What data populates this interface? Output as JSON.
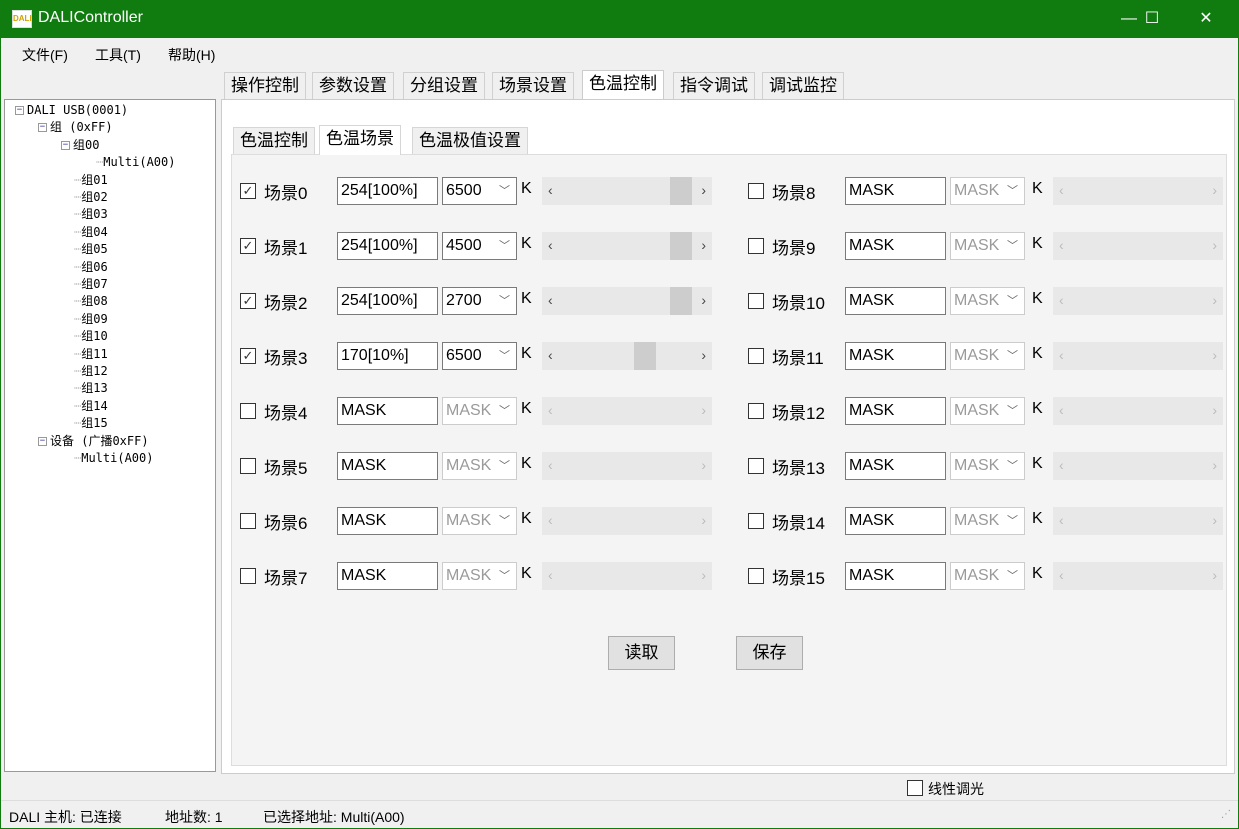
{
  "window": {
    "title": "DALIController",
    "app_icon_text": "DALI",
    "minimize": "—",
    "maximize": "☐",
    "close": "✕"
  },
  "menu": [
    {
      "label": "文件(F)"
    },
    {
      "label": "工具(T)"
    },
    {
      "label": "帮助(H)"
    }
  ],
  "tabs": [
    {
      "label": "操作控制"
    },
    {
      "label": "参数设置"
    },
    {
      "label": "分组设置"
    },
    {
      "label": "场景设置"
    },
    {
      "label": "色温控制",
      "active": true
    },
    {
      "label": "指令调试"
    },
    {
      "label": "调试监控"
    }
  ],
  "inner_tabs": [
    {
      "label": "色温控制"
    },
    {
      "label": "色温场景",
      "active": true
    },
    {
      "label": "色温极值设置"
    }
  ],
  "tree": [
    {
      "label": "DALI USB(0001)",
      "level": 0,
      "toggle": "−"
    },
    {
      "label": "组 (0xFF)",
      "level": 1,
      "toggle": "−"
    },
    {
      "label": "组00",
      "level": 2,
      "toggle": "−"
    },
    {
      "label": "Multi(A00)",
      "level": 3
    },
    {
      "label": "组01",
      "level": 2
    },
    {
      "label": "组02",
      "level": 2
    },
    {
      "label": "组03",
      "level": 2
    },
    {
      "label": "组04",
      "level": 2
    },
    {
      "label": "组05",
      "level": 2
    },
    {
      "label": "组06",
      "level": 2
    },
    {
      "label": "组07",
      "level": 2
    },
    {
      "label": "组08",
      "level": 2
    },
    {
      "label": "组09",
      "level": 2
    },
    {
      "label": "组10",
      "level": 2
    },
    {
      "label": "组11",
      "level": 2
    },
    {
      "label": "组12",
      "level": 2
    },
    {
      "label": "组13",
      "level": 2
    },
    {
      "label": "组14",
      "level": 2
    },
    {
      "label": "组15",
      "level": 2
    },
    {
      "label": "设备 (广播0xFF)",
      "level": 1,
      "toggle": "−"
    },
    {
      "label": "Multi(A00)",
      "level": 2
    }
  ],
  "unit": "K",
  "scenes": [
    {
      "label": "场景0",
      "checked": true,
      "level": "254[100%]",
      "cct": "6500",
      "slider": 1.0
    },
    {
      "label": "场景1",
      "checked": true,
      "level": "254[100%]",
      "cct": "4500",
      "slider": 1.0
    },
    {
      "label": "场景2",
      "checked": true,
      "level": "254[100%]",
      "cct": "2700",
      "slider": 1.0
    },
    {
      "label": "场景3",
      "checked": true,
      "level": "170[10%]",
      "cct": "6500",
      "slider": 0.67
    },
    {
      "label": "场景4",
      "checked": false,
      "level": "MASK",
      "cct": "MASK"
    },
    {
      "label": "场景5",
      "checked": false,
      "level": "MASK",
      "cct": "MASK"
    },
    {
      "label": "场景6",
      "checked": false,
      "level": "MASK",
      "cct": "MASK"
    },
    {
      "label": "场景7",
      "checked": false,
      "level": "MASK",
      "cct": "MASK"
    },
    {
      "label": "场景8",
      "checked": false,
      "level": "MASK",
      "cct": "MASK"
    },
    {
      "label": "场景9",
      "checked": false,
      "level": "MASK",
      "cct": "MASK"
    },
    {
      "label": "场景10",
      "checked": false,
      "level": "MASK",
      "cct": "MASK"
    },
    {
      "label": "场景11",
      "checked": false,
      "level": "MASK",
      "cct": "MASK"
    },
    {
      "label": "场景12",
      "checked": false,
      "level": "MASK",
      "cct": "MASK"
    },
    {
      "label": "场景13",
      "checked": false,
      "level": "MASK",
      "cct": "MASK"
    },
    {
      "label": "场景14",
      "checked": false,
      "level": "MASK",
      "cct": "MASK"
    },
    {
      "label": "场景15",
      "checked": false,
      "level": "MASK",
      "cct": "MASK"
    }
  ],
  "buttons": {
    "read": "读取",
    "save": "保存"
  },
  "linear_dimming": {
    "label": "线性调光",
    "checked": false
  },
  "status": {
    "host": "DALI 主机: 已连接",
    "count": "地址数: 1",
    "selected": "已选择地址: Multi(A00)"
  }
}
